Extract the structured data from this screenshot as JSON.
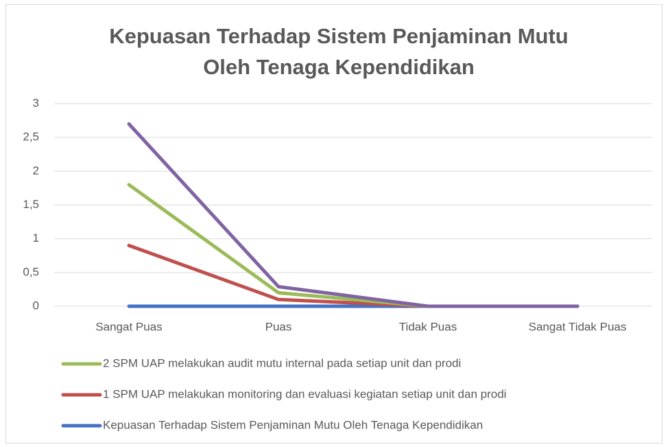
{
  "chart_data": {
    "type": "line",
    "stacked": true,
    "title": "Kepuasan Terhadap Sistem Penjaminan Mutu Oleh Tenaga Kependidikan",
    "categories": [
      "Sangat Puas",
      "Puas",
      "Tidak Puas",
      "Sangat Tidak Puas"
    ],
    "series": [
      {
        "name": "Kepuasan Terhadap Sistem Penjaminan Mutu Oleh Tenaga Kependidikan",
        "color": "#4472c4",
        "values": [
          0,
          0,
          0,
          0
        ]
      },
      {
        "name": "1 SPM UAP melakukan monitoring dan evaluasi kegiatan setiap unit dan prodi",
        "color": "#c0504d",
        "values": [
          0.9,
          0.1,
          0,
          0
        ]
      },
      {
        "name": "2 SPM UAP melakukan audit mutu internal pada setiap unit dan prodi",
        "color": "#9bbb59",
        "values": [
          0.9,
          0.1,
          0,
          0
        ]
      },
      {
        "color": "#8064a2",
        "values": [
          0.9,
          0.09,
          0,
          0
        ]
      }
    ],
    "ylim": [
      0,
      3
    ],
    "yticks": [
      0,
      {
        "value": 0.5,
        "label": "0,5"
      },
      1,
      {
        "value": 1.5,
        "label": "1,5"
      },
      2,
      {
        "value": 2.5,
        "label": "2,5"
      },
      3
    ],
    "grid": true,
    "legend": "bottom"
  }
}
